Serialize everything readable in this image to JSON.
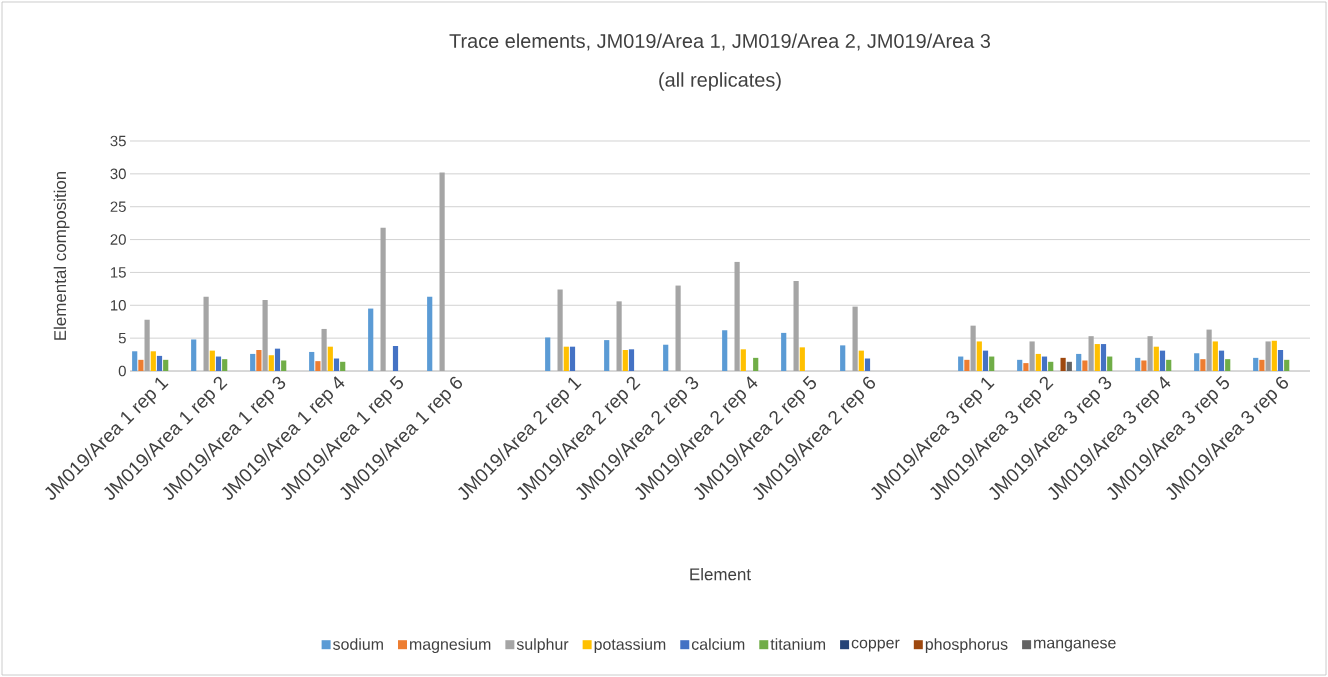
{
  "chart_data": {
    "type": "bar",
    "title": "Trace elements, JM019/Area 1, JM019/Area 2, JM019/Area 3\n(all replicates)",
    "xlabel": "Element",
    "ylabel": "Elemental composition",
    "categories": [
      "JM019/Area 1 rep 1",
      "JM019/Area 1 rep 2",
      "JM019/Area 1 rep 3",
      "JM019/Area 1 rep 4",
      "JM019/Area 1 rep 5",
      "JM019/Area 1 rep 6",
      null,
      "JM019/Area 2 rep 1",
      "JM019/Area 2 rep 2",
      "JM019/Area 2 rep 3",
      "JM019/Area 2 rep 4",
      "JM019/Area 2 rep 5",
      "JM019/Area 2 rep 6",
      null,
      "JM019/Area 3 rep 1",
      "JM019/Area 3 rep 2",
      "JM019/Area 3 rep 3",
      "JM019/Area 3 rep 4",
      "JM019/Area 3 rep 5",
      "JM019/Area 3 rep 6"
    ],
    "series": [
      {
        "name": "sodium",
        "color": "#5b9bd5",
        "values": [
          3.0,
          4.8,
          2.6,
          2.9,
          9.5,
          11.3,
          null,
          5.1,
          4.7,
          4.0,
          6.2,
          5.8,
          3.9,
          null,
          2.2,
          1.7,
          2.6,
          2.0,
          2.7,
          2.0
        ]
      },
      {
        "name": "magnesium",
        "color": "#ed7d31",
        "values": [
          1.7,
          null,
          3.2,
          1.5,
          null,
          null,
          null,
          null,
          null,
          null,
          null,
          null,
          null,
          null,
          1.7,
          1.2,
          1.6,
          1.6,
          1.8,
          1.7
        ]
      },
      {
        "name": "sulphur",
        "color": "#a5a5a5",
        "values": [
          7.8,
          11.3,
          10.8,
          6.4,
          21.8,
          30.2,
          null,
          12.4,
          10.6,
          13.0,
          16.6,
          13.7,
          9.8,
          null,
          6.9,
          4.5,
          5.3,
          5.3,
          6.3,
          4.5
        ]
      },
      {
        "name": "potassium",
        "color": "#ffc000",
        "values": [
          3.0,
          3.1,
          2.4,
          3.7,
          null,
          null,
          null,
          3.7,
          3.2,
          null,
          3.3,
          3.6,
          3.1,
          null,
          4.5,
          2.6,
          4.1,
          3.7,
          4.5,
          4.6
        ]
      },
      {
        "name": "calcium",
        "color": "#4472c4",
        "values": [
          2.3,
          2.2,
          3.4,
          1.9,
          3.8,
          null,
          null,
          3.7,
          3.3,
          null,
          null,
          null,
          1.9,
          null,
          3.1,
          2.2,
          4.1,
          3.1,
          3.1,
          3.2
        ]
      },
      {
        "name": "titanium",
        "color": "#70ad47",
        "values": [
          1.7,
          1.8,
          1.6,
          1.4,
          null,
          null,
          null,
          null,
          null,
          null,
          2.0,
          null,
          null,
          null,
          2.2,
          1.4,
          2.2,
          1.7,
          1.8,
          1.7
        ]
      },
      {
        "name": "copper",
        "color": "#264478",
        "values": [
          null,
          null,
          null,
          null,
          null,
          null,
          null,
          null,
          null,
          null,
          null,
          null,
          null,
          null,
          null,
          null,
          null,
          null,
          null,
          null
        ]
      },
      {
        "name": "phosphorus",
        "color": "#9e480e",
        "values": [
          null,
          null,
          null,
          null,
          null,
          null,
          null,
          null,
          null,
          null,
          null,
          null,
          null,
          null,
          null,
          2.0,
          null,
          null,
          null,
          null
        ]
      },
      {
        "name": "manganese",
        "color": "#636363",
        "values": [
          null,
          null,
          null,
          null,
          null,
          null,
          null,
          null,
          null,
          null,
          null,
          null,
          null,
          null,
          null,
          1.4,
          null,
          null,
          null,
          null
        ]
      }
    ],
    "ylim": [
      0,
      35
    ],
    "yticks": [
      0,
      5,
      10,
      15,
      20,
      25,
      30,
      35
    ],
    "grid": "y",
    "legend": "bottom"
  }
}
